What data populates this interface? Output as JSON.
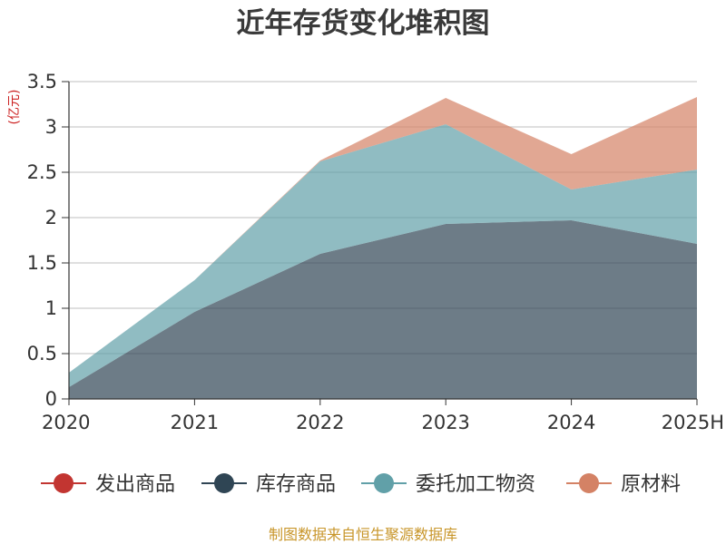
{
  "chart_data": {
    "type": "area",
    "title": "近年存货变化堆积图",
    "unit_label": "(亿元)",
    "categories": [
      "2020",
      "2021",
      "2022",
      "2023",
      "2024",
      "2025H"
    ],
    "ylim": [
      0,
      3.5
    ],
    "yticks": [
      "0",
      "0.5",
      "1",
      "1.5",
      "2",
      "2.5",
      "3",
      "3.5"
    ],
    "grid": true,
    "legend_position": "bottom",
    "stacked": true,
    "series": [
      {
        "name": "发出商品",
        "color": "#c23531",
        "values": [
          0,
          0,
          0,
          0,
          0,
          0
        ]
      },
      {
        "name": "库存商品",
        "color": "#2f4554",
        "values": [
          0.13,
          0.96,
          1.6,
          1.93,
          1.97,
          1.71
        ]
      },
      {
        "name": "委托加工物资",
        "color": "#61a0a8",
        "values": [
          0.16,
          0.35,
          1.02,
          1.1,
          0.34,
          0.82
        ]
      },
      {
        "name": "原材料",
        "color": "#d48265",
        "values": [
          0,
          0,
          0.01,
          0.29,
          0.39,
          0.8
        ]
      }
    ],
    "source": "制图数据来自恒生聚源数据库"
  }
}
